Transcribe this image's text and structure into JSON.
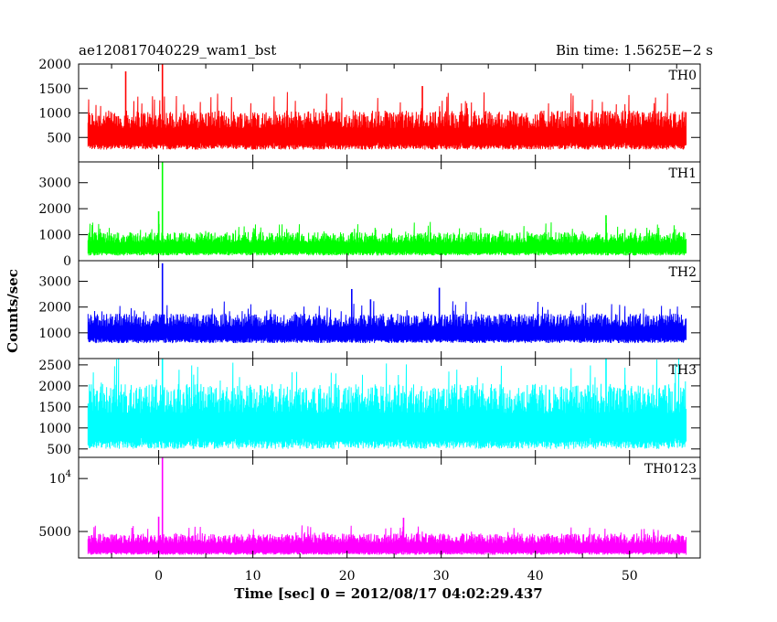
{
  "header": {
    "left_title": "ae120817040229_wam1_bst",
    "right_title": "Bin time: 1.5625E−2 s"
  },
  "chart_data": {
    "type": "line",
    "xlabel": "Time [sec] 0 = 2012/08/17 04:02:29.437",
    "ylabel": "Counts/sec",
    "xlim": [
      -8.5,
      57.5
    ],
    "x_ticks": [
      "0",
      "10",
      "20",
      "30",
      "40",
      "50"
    ],
    "x_tick_values": [
      0,
      10,
      20,
      30,
      40,
      50
    ],
    "data_x_range": [
      -7.5,
      56
    ],
    "panels": [
      {
        "name": "TH0",
        "color": "#ff0000",
        "ylim": [
          0,
          2000
        ],
        "yticks": [
          {
            "value": 500,
            "label": "500"
          },
          {
            "value": 1000,
            "label": "1000"
          },
          {
            "value": 1500,
            "label": "1500"
          },
          {
            "value": 2000,
            "label": "2000"
          }
        ],
        "baseline_low": 250,
        "typical_high": 1050,
        "peak_high": 1450,
        "spikes": [
          {
            "x": -3.5,
            "y": 1850
          },
          {
            "x": 0.4,
            "y": 2000
          },
          {
            "x": 28.0,
            "y": 1550
          }
        ]
      },
      {
        "name": "TH1",
        "color": "#00ff00",
        "ylim": [
          0,
          3800
        ],
        "yticks": [
          {
            "value": 0,
            "label": "0"
          },
          {
            "value": 1000,
            "label": "1000"
          },
          {
            "value": 2000,
            "label": "2000"
          },
          {
            "value": 3000,
            "label": "3000"
          }
        ],
        "baseline_low": 200,
        "typical_high": 1100,
        "peak_high": 1500,
        "spikes": [
          {
            "x": 0.0,
            "y": 1900
          },
          {
            "x": 0.4,
            "y": 3800
          },
          {
            "x": 47.5,
            "y": 1750
          }
        ]
      },
      {
        "name": "TH2",
        "color": "#0000ff",
        "ylim": [
          0,
          3800
        ],
        "yticks": [
          {
            "value": 1000,
            "label": "1000"
          },
          {
            "value": 2000,
            "label": "2000"
          },
          {
            "value": 3000,
            "label": "3000"
          }
        ],
        "baseline_low": 600,
        "typical_high": 1750,
        "peak_high": 2250,
        "spikes": [
          {
            "x": 0.4,
            "y": 3700
          },
          {
            "x": 20.5,
            "y": 2700
          },
          {
            "x": 29.8,
            "y": 2750
          },
          {
            "x": 22.5,
            "y": 2300
          }
        ]
      },
      {
        "name": "TH3",
        "color": "#00ffff",
        "ylim": [
          300,
          2650
        ],
        "yticks": [
          {
            "value": 500,
            "label": "500"
          },
          {
            "value": 1000,
            "label": "1000"
          },
          {
            "value": 1500,
            "label": "1500"
          },
          {
            "value": 2000,
            "label": "2000"
          },
          {
            "value": 2500,
            "label": "2500"
          }
        ],
        "baseline_low": 500,
        "typical_high": 2050,
        "peak_high": 2650,
        "spikes": [
          {
            "x": 0.4,
            "y": 2650
          },
          {
            "x": 47.5,
            "y": 2650
          }
        ]
      },
      {
        "name": "TH0123",
        "color": "#ff00ff",
        "ylim": [
          2500,
          12000
        ],
        "yticks": [
          {
            "value": 5000,
            "label": "5000"
          },
          {
            "value": 10000,
            "label": "10",
            "sup": "4"
          }
        ],
        "baseline_low": 2800,
        "typical_high": 4800,
        "peak_high": 5600,
        "spikes": [
          {
            "x": 0.4,
            "y": 12000
          },
          {
            "x": 0.0,
            "y": 6400
          },
          {
            "x": 26.0,
            "y": 6300
          }
        ]
      }
    ]
  }
}
